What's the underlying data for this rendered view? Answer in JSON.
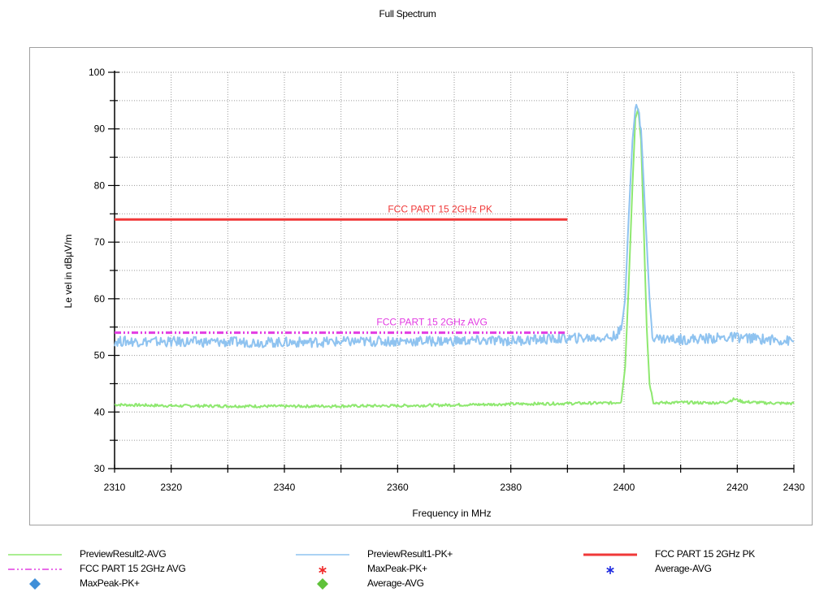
{
  "chart_data": {
    "type": "line",
    "title": "Full Spectrum",
    "xlabel": "Frequency in MHz",
    "ylabel": "Le vel in dBµV/m",
    "xlim": [
      2310,
      2430
    ],
    "ylim": [
      30,
      100
    ],
    "x_ticks": [
      2310,
      2320,
      2340,
      2360,
      2380,
      2400,
      2420,
      2430
    ],
    "y_ticks": [
      30,
      40,
      50,
      60,
      70,
      80,
      90,
      100
    ],
    "grid": true,
    "legend_position": "bottom",
    "series": [
      {
        "name": "PreviewResult2-AVG",
        "color": "#8ee86f",
        "style": "solid",
        "x": [
          2310,
          2320,
          2340,
          2360,
          2380,
          2398,
          2399.5,
          2400.2,
          2400.8,
          2401.5,
          2402,
          2402.5,
          2403,
          2403.5,
          2404,
          2404.5,
          2405.2,
          2406,
          2410,
          2415,
          2418,
          2419.5,
          2421,
          2425,
          2430
        ],
        "values": [
          41.3,
          41.1,
          41.0,
          41.1,
          41.4,
          41.6,
          41.8,
          48,
          62,
          80,
          92,
          93.5,
          88,
          72,
          55,
          45,
          41.7,
          41.6,
          41.7,
          41.6,
          41.7,
          42.3,
          41.8,
          41.6,
          41.5
        ]
      },
      {
        "name": "PreviewResult1-PK+",
        "color": "#8fc3f0",
        "style": "solid",
        "x": [
          2310,
          2320,
          2340,
          2360,
          2380,
          2390,
          2398,
          2399.5,
          2400.2,
          2400.8,
          2401.5,
          2402,
          2402.5,
          2403,
          2403.5,
          2404,
          2404.5,
          2405,
          2406,
          2410,
          2420,
          2430
        ],
        "values": [
          52.5,
          52.4,
          52.3,
          52.5,
          52.6,
          53.0,
          53.2,
          54.5,
          60,
          74,
          88,
          93.5,
          93.8,
          90,
          80,
          70,
          60,
          53.5,
          53.0,
          52.8,
          53.2,
          52.5
        ]
      },
      {
        "name": "FCC PART 15 2GHz PK",
        "color": "#f03838",
        "style": "solid",
        "x": [
          2310,
          2390
        ],
        "values": [
          74,
          74
        ]
      },
      {
        "name": "FCC PART 15 2GHz AVG",
        "color": "#e23ce2",
        "style": "dashdot",
        "x": [
          2310,
          2390
        ],
        "values": [
          54,
          54
        ]
      }
    ],
    "limit_labels": [
      {
        "text": "FCC PART 15 2GHz PK",
        "x": 2360,
        "y": 74,
        "color": "#f03838"
      },
      {
        "text": "FCC PART 15 2GHz AVG",
        "x": 2358,
        "y": 54,
        "color": "#e23ce2"
      }
    ],
    "markers": [
      {
        "name": "MaxPeak-PK+",
        "symbol": "asterisk",
        "color": "#f02828",
        "points": []
      },
      {
        "name": "Average-AVG",
        "symbol": "asterisk",
        "color": "#1f2be0",
        "points": []
      },
      {
        "name": "MaxPeak-PK+",
        "symbol": "diamond",
        "color": "#3f8fd8",
        "points": []
      },
      {
        "name": "Average-AVG",
        "symbol": "diamond",
        "color": "#5fc23a",
        "points": []
      }
    ]
  },
  "legend": [
    {
      "label": "PreviewResult2-AVG",
      "swatch": "line-solid",
      "color": "#8ee86f"
    },
    {
      "label": "PreviewResult1-PK+",
      "swatch": "line-solid",
      "color": "#8fc3f0"
    },
    {
      "label": "FCC PART 15 2GHz PK",
      "swatch": "line-solid-thick",
      "color": "#f03838"
    },
    {
      "label": "FCC PART 15 2GHz AVG",
      "swatch": "line-dashdot",
      "color": "#e23ce2"
    },
    {
      "label": "MaxPeak-PK+",
      "swatch": "asterisk",
      "color": "#f02828"
    },
    {
      "label": "Average-AVG",
      "swatch": "asterisk",
      "color": "#1f2be0"
    },
    {
      "label": "MaxPeak-PK+",
      "swatch": "diamond",
      "color": "#3f8fd8"
    },
    {
      "label": "Average-AVG",
      "swatch": "diamond",
      "color": "#5fc23a"
    }
  ]
}
